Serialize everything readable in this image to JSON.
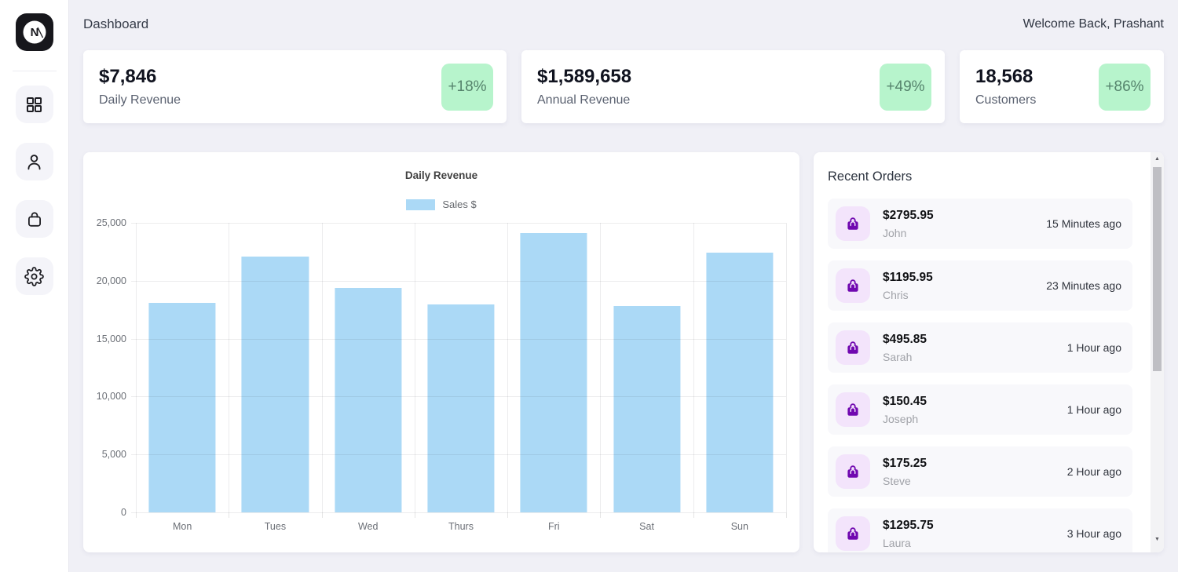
{
  "header": {
    "title": "Dashboard",
    "welcome": "Welcome Back, Prashant"
  },
  "sidebar": {
    "logo": "N",
    "icons": [
      "grid-icon",
      "user-icon",
      "shopping-bag-icon",
      "gear-icon"
    ]
  },
  "stats": [
    {
      "value": "$7,846",
      "label": "Daily Revenue",
      "change": "+18%"
    },
    {
      "value": "$1,589,658",
      "label": "Annual Revenue",
      "change": "+49%"
    },
    {
      "value": "18,568",
      "label": "Customers",
      "change": "+86%"
    }
  ],
  "chart_data": {
    "type": "bar",
    "title": "Daily Revenue",
    "legend": [
      "Sales $"
    ],
    "legend_position": "top",
    "categories": [
      "Mon",
      "Tues",
      "Wed",
      "Thurs",
      "Fri",
      "Sat",
      "Sun"
    ],
    "values": [
      18100,
      22100,
      19400,
      17950,
      24100,
      17800,
      22400
    ],
    "xlabel": "",
    "ylabel": "",
    "ylim": [
      0,
      25000
    ],
    "yticks": [
      0,
      5000,
      10000,
      15000,
      20000,
      25000
    ],
    "grid": true,
    "bar_color": "#abd9f6"
  },
  "orders": {
    "title": "Recent Orders",
    "items": [
      {
        "amount": "$2795.95",
        "name": "John",
        "time": "15 Minutes ago"
      },
      {
        "amount": "$1195.95",
        "name": "Chris",
        "time": "23 Minutes ago"
      },
      {
        "amount": "$495.85",
        "name": "Sarah",
        "time": "1 Hour ago"
      },
      {
        "amount": "$150.45",
        "name": "Joseph",
        "time": "1 Hour ago"
      },
      {
        "amount": "$175.25",
        "name": "Steve",
        "time": "2 Hour ago"
      },
      {
        "amount": "$1295.75",
        "name": "Laura",
        "time": "3 Hour ago"
      }
    ]
  },
  "colors": {
    "page_bg": "#f0f0f6",
    "badge_bg": "#b7f4cc",
    "badge_text": "#55836c",
    "bar": "#abd9f6",
    "order_icon_bg": "#f3e4fb",
    "order_icon": "#7008b0"
  }
}
